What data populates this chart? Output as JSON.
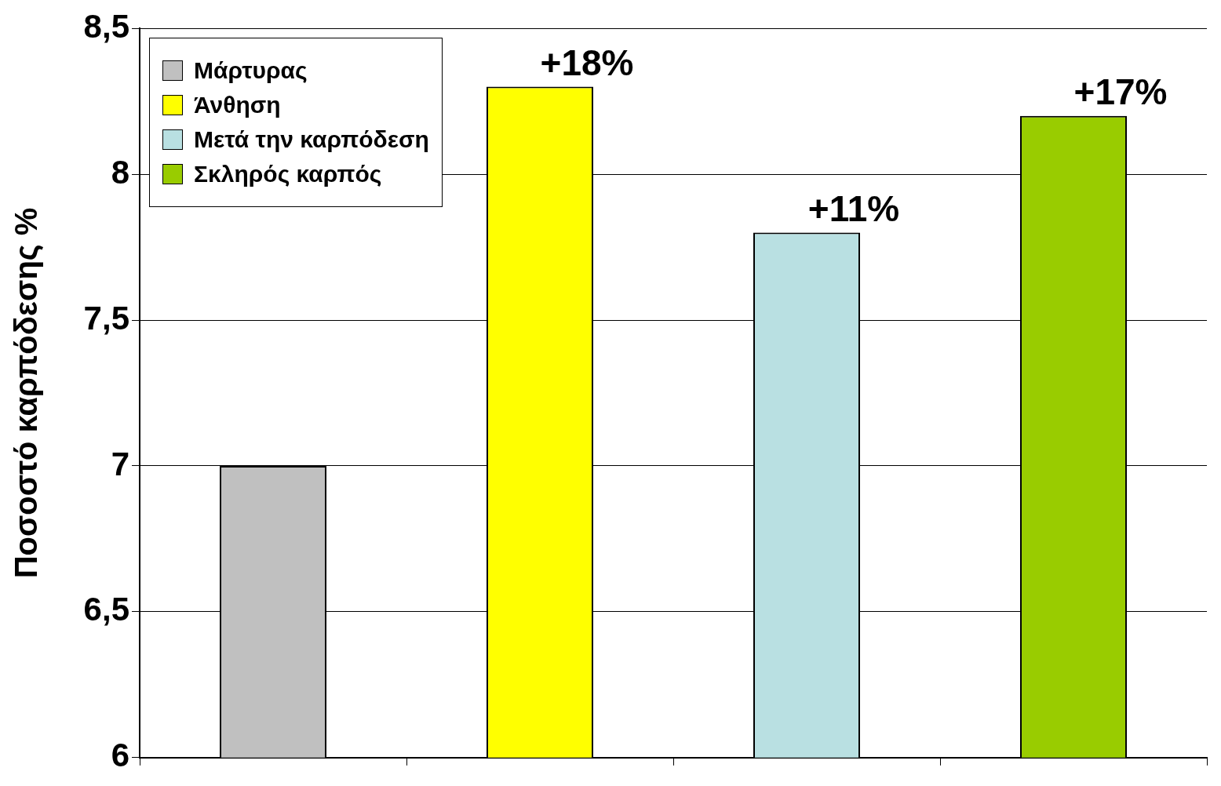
{
  "chart_data": {
    "type": "bar",
    "ylabel": "Ποσοστό καρπόδεσης %",
    "categories": [
      null,
      null,
      null,
      null
    ],
    "series": [
      {
        "name": "Μάρτυρας",
        "color": "#c0c0c0",
        "values": [
          7.0,
          null,
          null,
          null
        ]
      },
      {
        "name": "Άνθηση",
        "color": "#ffff00",
        "values": [
          null,
          8.3,
          null,
          null
        ]
      },
      {
        "name": "Μετά την καρπόδεση",
        "color": "#b9e0e2",
        "values": [
          null,
          null,
          7.8,
          null
        ]
      },
      {
        "name": "Σκληρός καρπός",
        "color": "#99cc00",
        "values": [
          null,
          null,
          null,
          8.2
        ]
      }
    ],
    "annotations": [
      {
        "text": "+18%",
        "y": 8.3
      },
      {
        "text": "+11%",
        "y": 7.8
      },
      {
        "text": "+17%",
        "y": 8.2
      }
    ],
    "ylim": [
      6,
      8.5
    ],
    "yticks": [
      {
        "value": 6,
        "label": "6"
      },
      {
        "value": 6.5,
        "label": "6,5"
      },
      {
        "value": 7,
        "label": "7"
      },
      {
        "value": 7.5,
        "label": "7,5"
      },
      {
        "value": 8,
        "label": "8"
      },
      {
        "value": 8.5,
        "label": "8,5"
      }
    ],
    "grid": "y",
    "legend": "top left"
  }
}
